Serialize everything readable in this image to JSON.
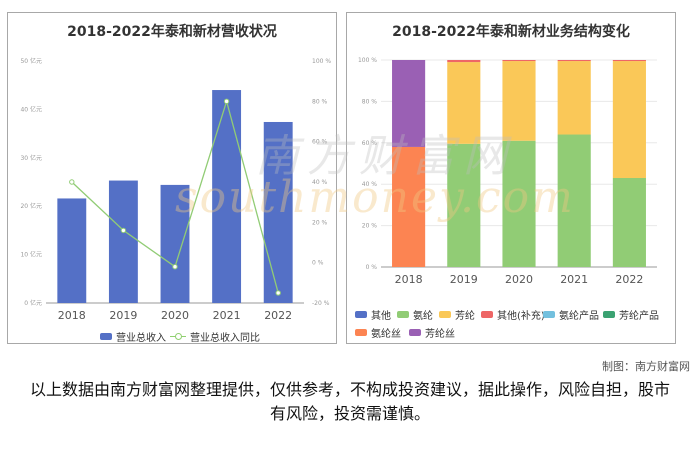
{
  "left_title": "2018-2022年泰和新材营收状况",
  "right_title": "2018-2022年泰和新材业务结构变化",
  "watermark_cn": "南方财富网",
  "watermark_en": "southmoney.com",
  "credit": "制图：南方财富网",
  "disclaimer": "以上数据由南方财富网整理提供，仅供参考，不构成投资建议，据此操作，风险自担，股市有风险，投资需谨慎。",
  "chart_data": [
    {
      "type": "bar",
      "title": "2018-2022年泰和新材营收状况",
      "categories": [
        "2018",
        "2019",
        "2020",
        "2021",
        "2022"
      ],
      "series": [
        {
          "name": "营业总收入",
          "type": "bar",
          "axis": "left",
          "color": "#5470c6",
          "values": [
            21.6,
            25.3,
            24.4,
            44.0,
            37.4
          ]
        },
        {
          "name": "营业总收入同比",
          "type": "line",
          "axis": "right",
          "color": "#91cc75",
          "values": [
            40,
            16,
            -2,
            80,
            -15
          ]
        }
      ],
      "y_left": {
        "ticks": [
          "0 亿元",
          "10 亿元",
          "20 亿元",
          "30 亿元",
          "40 亿元",
          "50 亿元"
        ],
        "range": [
          0,
          50
        ]
      },
      "y_right": {
        "ticks": [
          "-20 %",
          "0 %",
          "20 %",
          "40 %",
          "60 %",
          "80 %",
          "100 %"
        ],
        "range": [
          -20,
          100
        ]
      },
      "grid": false,
      "legend_position": "bottom"
    },
    {
      "type": "bar",
      "stacked": true,
      "title": "2018-2022年泰和新材业务结构变化",
      "categories": [
        "2018",
        "2019",
        "2020",
        "2021",
        "2022"
      ],
      "y_ticks": [
        "0 %",
        "20 %",
        "40 %",
        "60 %",
        "80 %",
        "100 %"
      ],
      "y_range": [
        0,
        100
      ],
      "series": [
        {
          "name": "其他",
          "color": "#5470c6",
          "values": [
            0,
            0,
            0,
            0,
            0
          ]
        },
        {
          "name": "氨纶",
          "color": "#91cc75",
          "values": [
            0,
            59.5,
            61,
            64,
            43
          ]
        },
        {
          "name": "芳纶",
          "color": "#fac858",
          "values": [
            0,
            39.5,
            38.5,
            35.5,
            56.5
          ]
        },
        {
          "name": "其他(补充)",
          "color": "#ee6666",
          "values": [
            0,
            1,
            0.5,
            0.5,
            0.5
          ]
        },
        {
          "name": "氨纶产品",
          "color": "#73c0de",
          "values": [
            0,
            0,
            0,
            0,
            0
          ]
        },
        {
          "name": "芳纶产品",
          "color": "#3ba272",
          "values": [
            0,
            0,
            0,
            0,
            0
          ]
        },
        {
          "name": "氨纶丝",
          "color": "#fc8452",
          "values": [
            58,
            0,
            0,
            0,
            0
          ]
        },
        {
          "name": "芳纶丝",
          "color": "#9a60b4",
          "values": [
            42,
            0,
            0,
            0,
            0
          ]
        }
      ],
      "grid": true,
      "legend_position": "bottom"
    }
  ]
}
